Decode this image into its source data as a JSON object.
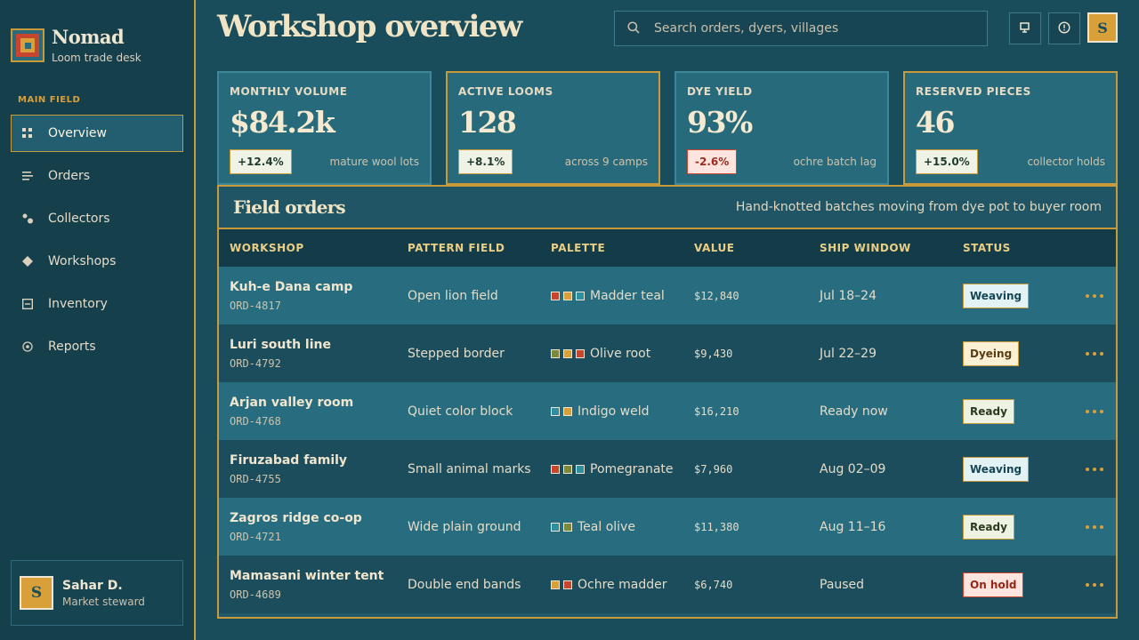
{
  "brand": {
    "name": "Nomad",
    "subtitle": "Loom trade desk"
  },
  "sidebar": {
    "section_label": "MAIN FIELD",
    "items": [
      {
        "label": "Overview",
        "icon": "grid-icon",
        "active": true
      },
      {
        "label": "Orders",
        "icon": "list-icon",
        "active": false
      },
      {
        "label": "Collectors",
        "icon": "people-icon",
        "active": false
      },
      {
        "label": "Workshops",
        "icon": "diamond-icon",
        "active": false
      },
      {
        "label": "Inventory",
        "icon": "box-icon",
        "active": false
      },
      {
        "label": "Reports",
        "icon": "target-icon",
        "active": false
      }
    ],
    "user": {
      "initial": "S",
      "name": "Sahar D.",
      "role": "Market steward"
    }
  },
  "header": {
    "title": "Workshop overview",
    "search_placeholder": "Search orders, dyers, villages",
    "avatar_initial": "S"
  },
  "stats": [
    {
      "label": "MONTHLY VOLUME",
      "value": "$84.2k",
      "change": "+12.4%",
      "note": "mature wool lots",
      "trend": "up"
    },
    {
      "label": "ACTIVE LOOMS",
      "value": "128",
      "change": "+8.1%",
      "note": "across 9 camps",
      "trend": "up"
    },
    {
      "label": "DYE YIELD",
      "value": "93%",
      "change": "-2.6%",
      "note": "ochre batch lag",
      "trend": "down"
    },
    {
      "label": "RESERVED PIECES",
      "value": "46",
      "change": "+15.0%",
      "note": "collector holds",
      "trend": "up"
    }
  ],
  "orders": {
    "title": "Field orders",
    "subtitle": "Hand-knotted batches moving from dye pot to buyer room",
    "columns": [
      "WORKSHOP",
      "PATTERN FIELD",
      "PALETTE",
      "VALUE",
      "SHIP WINDOW",
      "STATUS"
    ],
    "rows": [
      {
        "workshop": "Kuh-e Dana camp",
        "id": "ORD-4817",
        "pattern": "Open lion field",
        "swatches": [
          "#c8452f",
          "#d9a03a",
          "#2e8fa0"
        ],
        "palette": "Madder teal",
        "value": "$12,840",
        "window": "Jul 18–24",
        "status": "Weaving"
      },
      {
        "workshop": "Luri south line",
        "id": "ORD-4792",
        "pattern": "Stepped border",
        "swatches": [
          "#7a8a3a",
          "#d9a03a",
          "#c8452f"
        ],
        "palette": "Olive root",
        "value": "$9,430",
        "window": "Jul 22–29",
        "status": "Dyeing"
      },
      {
        "workshop": "Arjan valley room",
        "id": "ORD-4768",
        "pattern": "Quiet color block",
        "swatches": [
          "#2e8fa0",
          "#d9a03a"
        ],
        "palette": "Indigo weld",
        "value": "$16,210",
        "window": "Ready now",
        "status": "Ready"
      },
      {
        "workshop": "Firuzabad family",
        "id": "ORD-4755",
        "pattern": "Small animal marks",
        "swatches": [
          "#c8452f",
          "#7a8a3a",
          "#2e8fa0"
        ],
        "palette": "Pomegranate",
        "value": "$7,960",
        "window": "Aug 02–09",
        "status": "Weaving"
      },
      {
        "workshop": "Zagros ridge co-op",
        "id": "ORD-4721",
        "pattern": "Wide plain ground",
        "swatches": [
          "#2e8fa0",
          "#7a8a3a"
        ],
        "palette": "Teal olive",
        "value": "$11,380",
        "window": "Aug 11–16",
        "status": "Ready"
      },
      {
        "workshop": "Mamasani winter tent",
        "id": "ORD-4689",
        "pattern": "Double end bands",
        "swatches": [
          "#d9a03a",
          "#c8452f"
        ],
        "palette": "Ochre madder",
        "value": "$6,740",
        "window": "Paused",
        "status": "On hold"
      }
    ]
  }
}
